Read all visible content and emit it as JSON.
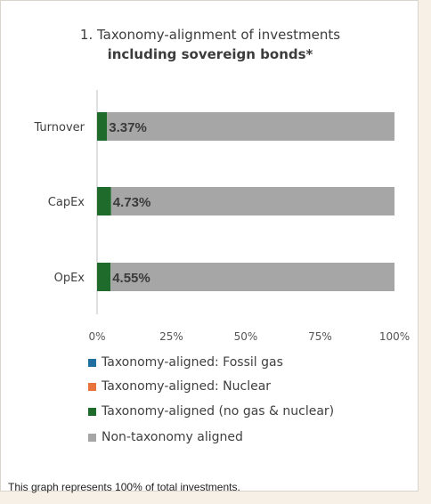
{
  "title_line1": "1. Taxonomy-alignment of investments",
  "title_line2": "including sovereign bonds*",
  "footnote": "This graph represents 100% of total investments.",
  "colors": {
    "fossil_gas": "#1f6fa0",
    "nuclear": "#e8743b",
    "aligned": "#1e6b2c",
    "non_aligned": "#a6a6a6"
  },
  "chart_data": {
    "type": "bar",
    "orientation": "horizontal",
    "stacked": true,
    "categories": [
      "Turnover",
      "CapEx",
      "OpEx"
    ],
    "series": [
      {
        "name": "Taxonomy-aligned: Fossil gas",
        "values": [
          0,
          0,
          0
        ],
        "color": "#1f6fa0"
      },
      {
        "name": "Taxonomy-aligned: Nuclear",
        "values": [
          0,
          0,
          0
        ],
        "color": "#e8743b"
      },
      {
        "name": "Taxonomy-aligned (no gas & nuclear)",
        "values": [
          3.37,
          4.73,
          4.55
        ],
        "color": "#1e6b2c"
      },
      {
        "name": "Non-taxonomy aligned",
        "values": [
          96.63,
          95.27,
          95.45
        ],
        "color": "#a6a6a6"
      }
    ],
    "data_labels": [
      "3.37%",
      "4.73%",
      "4.55%"
    ],
    "xticks": [
      "0%",
      "25%",
      "50%",
      "75%",
      "100%"
    ],
    "xlim": [
      0,
      100
    ],
    "legend_position": "bottom",
    "grid": false
  }
}
